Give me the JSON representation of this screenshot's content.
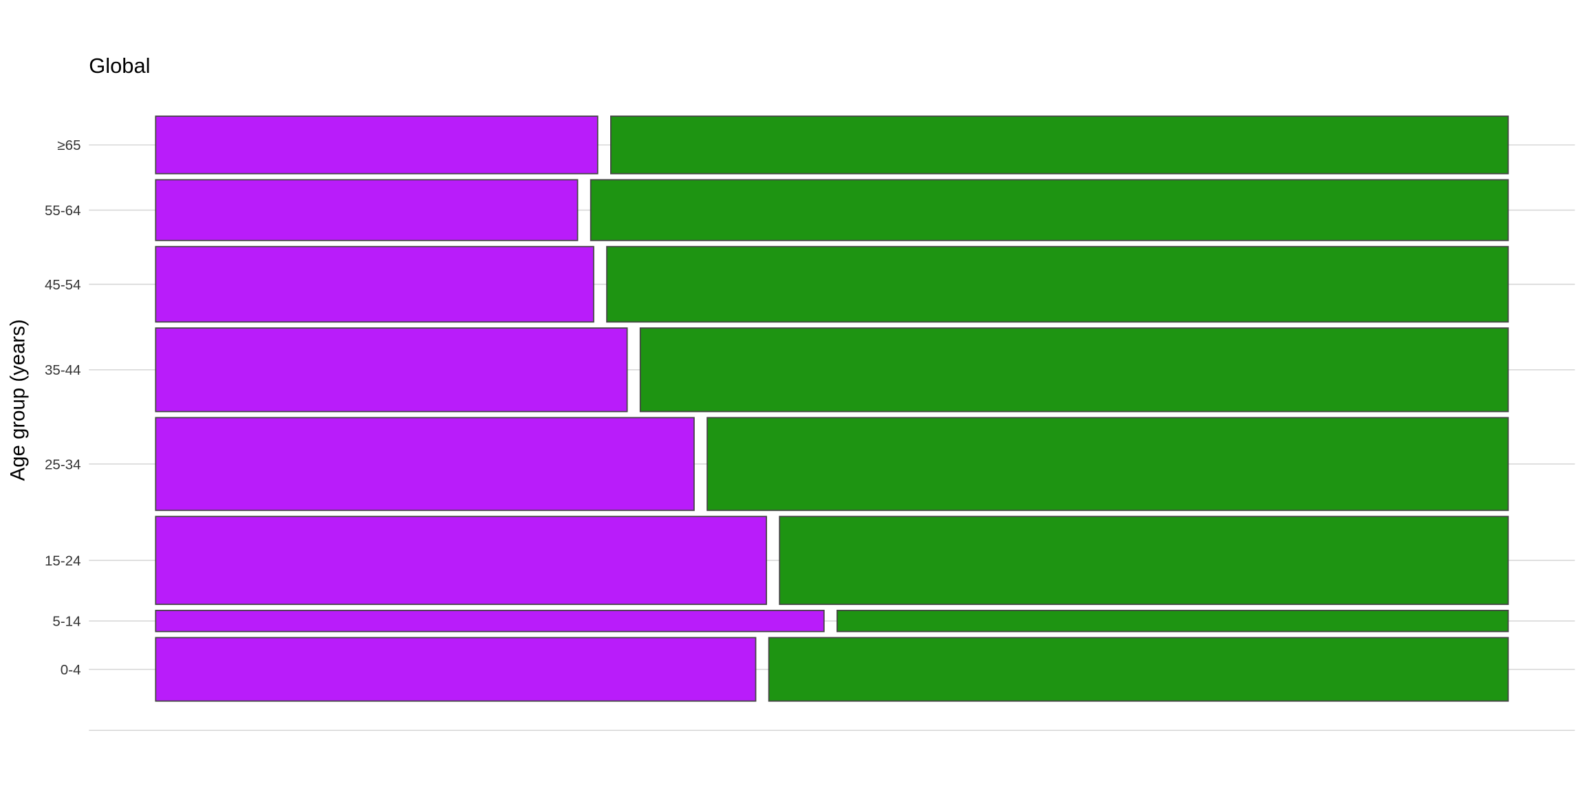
{
  "chart_data": {
    "type": "mosaic",
    "title": "Global",
    "xlabel": "",
    "ylabel": "Age group (years)",
    "categories": [
      "0-4",
      "5-14",
      "15-24",
      "25-34",
      "35-44",
      "45-54",
      "55-64",
      "≥65"
    ],
    "row_share": [
      0.117,
      0.039,
      0.162,
      0.171,
      0.154,
      0.139,
      0.112,
      0.106
    ],
    "series": [
      {
        "values": [
          0.448,
          0.499,
          0.456,
          0.402,
          0.352,
          0.327,
          0.315,
          0.33
        ],
        "color": "#b91cfa"
      },
      {
        "values": [
          0.552,
          0.501,
          0.544,
          0.598,
          0.648,
          0.673,
          0.685,
          0.67
        ],
        "color": "#1e9412"
      }
    ],
    "xlim": [
      0,
      1
    ],
    "grid": "horizontal",
    "legend": "none"
  }
}
